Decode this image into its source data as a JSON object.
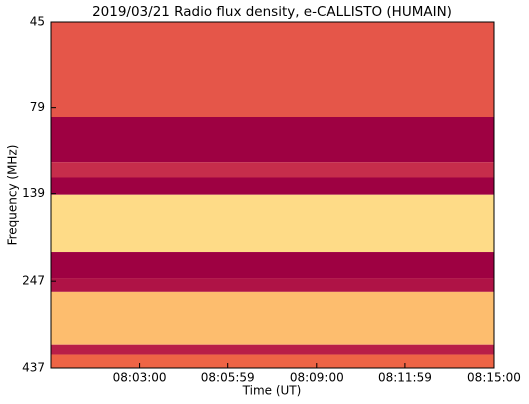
{
  "chart_data": {
    "type": "spectrogram",
    "title": "2019/03/21  Radio flux density, e-CALLISTO (HUMAIN)",
    "x_label": "Time (UT)",
    "y_label": "Frequency (MHz)",
    "xlim": [
      28800,
      29700
    ],
    "xticks": [
      {
        "value": 28980,
        "label": "08:03:00"
      },
      {
        "value": 29159,
        "label": "08:05:59"
      },
      {
        "value": 29340,
        "label": "08:09:00"
      },
      {
        "value": 29519,
        "label": "08:11:59"
      },
      {
        "value": 29700,
        "label": "08:15:00"
      }
    ],
    "ylim": [
      45,
      437
    ],
    "y_log": true,
    "y_inverted": true,
    "yticks": [
      45,
      79,
      139,
      247,
      437
    ],
    "y_edges": [
      45,
      84,
      113,
      125,
      140,
      204,
      242,
      265,
      375,
      400,
      437
    ],
    "z": [
      0.25,
      0,
      0.12,
      0,
      0.65,
      0,
      0.05,
      0.55,
      0.08,
      0.3
    ],
    "colormap": [
      "#9e0142",
      "#d53e4f",
      "#f46d43",
      "#fdae61",
      "#fee08b",
      "#e6f598",
      "#abdda4"
    ]
  }
}
